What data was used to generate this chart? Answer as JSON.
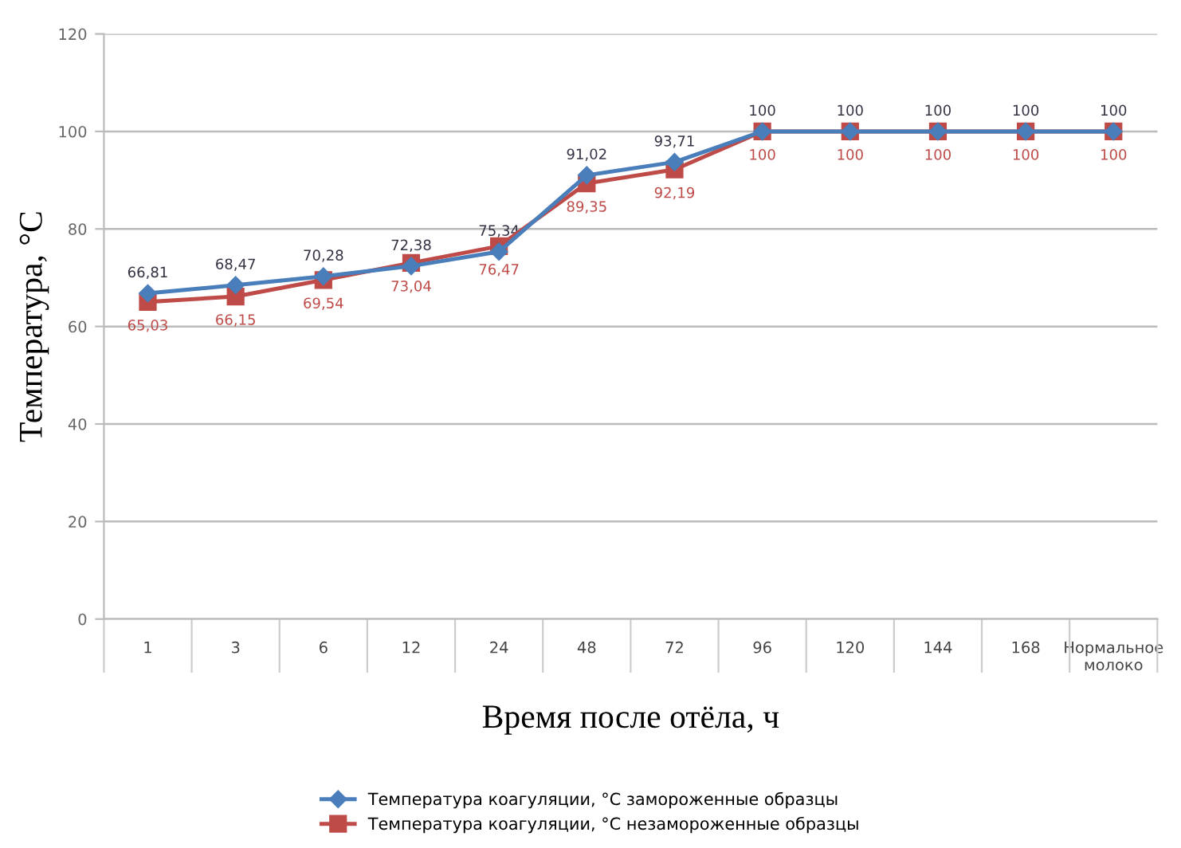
{
  "chart_data": {
    "type": "line",
    "xlabel": "Время после отёла, ч",
    "ylabel": "Температура, °С",
    "categories": [
      "1",
      "3",
      "6",
      "12",
      "24",
      "48",
      "72",
      "96",
      "120",
      "144",
      "168",
      "Нормальное молоко"
    ],
    "series": [
      {
        "name": "Температура коагуляции, °С замороженные образцы",
        "color": "#4a7ebb",
        "marker": "diamond",
        "values": [
          66.81,
          68.47,
          70.28,
          72.38,
          75.34,
          91.02,
          93.71,
          100,
          100,
          100,
          100,
          100
        ],
        "value_labels": [
          "66,81",
          "68,47",
          "70,28",
          "72,38",
          "75,34",
          "91,02",
          "93,71",
          "100",
          "100",
          "100",
          "100",
          "100"
        ]
      },
      {
        "name": "Температура коагуляции, °С незамороженные образцы",
        "color": "#be4b48",
        "marker": "square",
        "values": [
          65.03,
          66.15,
          69.54,
          73.04,
          76.47,
          89.35,
          92.19,
          100,
          100,
          100,
          100,
          100
        ],
        "value_labels": [
          "65,03",
          "66,15",
          "69,54",
          "73,04",
          "76,47",
          "89,35",
          "92,19",
          "100",
          "100",
          "100",
          "100",
          "100"
        ]
      }
    ],
    "ylim": [
      0,
      120
    ],
    "yticks": [
      0,
      20,
      40,
      60,
      80,
      100,
      120
    ],
    "grid": "y",
    "legend": "bottom",
    "line_style": "solid"
  }
}
